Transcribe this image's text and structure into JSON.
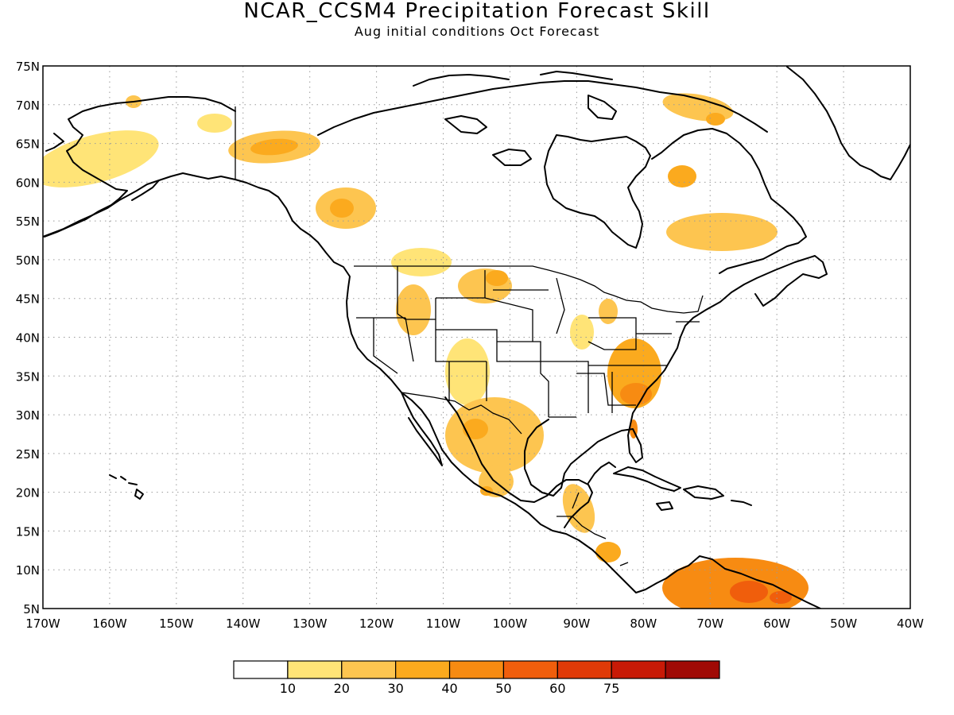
{
  "figure": {
    "title": "NCAR_CCSM4 Precipitation Forecast Skill",
    "subtitle": "Aug initial conditions  Oct Forecast"
  },
  "map": {
    "lon_range": [
      -170,
      -40
    ],
    "lat_range": [
      5,
      75
    ],
    "lon_ticks": [
      {
        "lon": -170,
        "label": "170W"
      },
      {
        "lon": -160,
        "label": "160W"
      },
      {
        "lon": -150,
        "label": "150W"
      },
      {
        "lon": -140,
        "label": "140W"
      },
      {
        "lon": -130,
        "label": "130W"
      },
      {
        "lon": -120,
        "label": "120W"
      },
      {
        "lon": -110,
        "label": "110W"
      },
      {
        "lon": -100,
        "label": "100W"
      },
      {
        "lon": -90,
        "label": "90W"
      },
      {
        "lon": -80,
        "label": "80W"
      },
      {
        "lon": -70,
        "label": "70W"
      },
      {
        "lon": -60,
        "label": "60W"
      },
      {
        "lon": -50,
        "label": "50W"
      },
      {
        "lon": -40,
        "label": "40W"
      }
    ],
    "lat_ticks": [
      {
        "lat": 5,
        "label": "5N"
      },
      {
        "lat": 10,
        "label": "10N"
      },
      {
        "lat": 15,
        "label": "15N"
      },
      {
        "lat": 20,
        "label": "20N"
      },
      {
        "lat": 25,
        "label": "25N"
      },
      {
        "lat": 30,
        "label": "30N"
      },
      {
        "lat": 35,
        "label": "35N"
      },
      {
        "lat": 40,
        "label": "40N"
      },
      {
        "lat": 45,
        "label": "45N"
      },
      {
        "lat": 50,
        "label": "50N"
      },
      {
        "lat": 55,
        "label": "55N"
      },
      {
        "lat": 60,
        "label": "60N"
      },
      {
        "lat": 65,
        "label": "65N"
      },
      {
        "lat": 70,
        "label": "70N"
      },
      {
        "lat": 75,
        "label": "75N"
      }
    ],
    "grid": true,
    "skill_regions": [
      {
        "region": "Central Alaska",
        "level": 1
      },
      {
        "region": "Northern Yukon",
        "level": 1
      },
      {
        "region": "Southern Yukon",
        "level": 2
      },
      {
        "region": "Northern British Columbia",
        "level": 2
      },
      {
        "region": "Northern Rockies",
        "level": 1
      },
      {
        "region": "Northern Plains",
        "level": 2
      },
      {
        "region": "Colorado and New Mexico",
        "level": 1
      },
      {
        "region": "Texas and Northern Mexico",
        "level": 2
      },
      {
        "region": "Central Mexico",
        "level": 2
      },
      {
        "region": "Upper Midwest",
        "level": 1
      },
      {
        "region": "Georgia and the Carolinas",
        "level": 3
      },
      {
        "region": "Florida",
        "level": 4
      },
      {
        "region": "Central America",
        "level": 2
      },
      {
        "region": "Labrador and Quebec",
        "level": 2
      },
      {
        "region": "Baffin Island",
        "level": 2
      },
      {
        "region": "Northern South America",
        "level": 4
      }
    ]
  },
  "colorbar": {
    "colors": [
      "#ffffff",
      "#ffe477",
      "#fdc550",
      "#fbaa1e",
      "#f78b12",
      "#f05e0c",
      "#e03a08",
      "#c81a06",
      "#a00a05"
    ],
    "labels": [
      "10",
      "20",
      "30",
      "40",
      "50",
      "60",
      "75"
    ]
  }
}
